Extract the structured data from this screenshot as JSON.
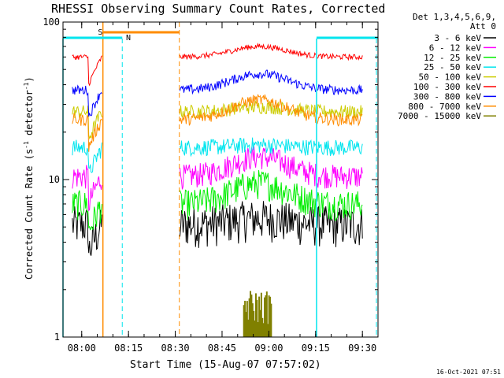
{
  "chart_data": {
    "type": "line",
    "title": "RHESSI Observing Summary Count Rates, Corrected",
    "xlabel": "Start Time (15-Aug-07 07:57:02)",
    "ylabel_main": "Corrected Count Rate (s",
    "ylabel_sup1": "-1",
    "ylabel_mid": " detector",
    "ylabel_sup2": "-1",
    "ylabel_end": ")",
    "yscale": "log",
    "ylim": [
      1,
      100
    ],
    "xlim_min": [
      -3.0,
      98.0
    ],
    "ytick_labels": [
      "1",
      "10",
      "100"
    ],
    "xticks": [
      {
        "label": "08:00",
        "min": 3
      },
      {
        "label": "08:15",
        "min": 18
      },
      {
        "label": "08:30",
        "min": 33
      },
      {
        "label": "08:45",
        "min": 48
      },
      {
        "label": "09:00",
        "min": 63
      },
      {
        "label": "09:15",
        "min": 78
      },
      {
        "label": "09:30",
        "min": 93
      }
    ],
    "legend_header": [
      "Det 1,3,4,5,6,9,",
      "Att 0"
    ],
    "legend_placement": "right",
    "data_gaps": [
      [
        9.5,
        34.5
      ],
      [
        78.0,
        78.5
      ]
    ],
    "series": [
      {
        "name": "3 - 6 keV",
        "color": "#000000",
        "base": 5.2,
        "peak": 0.5,
        "noise": 0.3
      },
      {
        "name": "6 - 12 keV",
        "color": "#ff00ff",
        "base": 10.5,
        "peak": 3.5,
        "noise": 0.18
      },
      {
        "name": "12 - 25 keV",
        "color": "#00ee00",
        "base": 7.0,
        "peak": 2.5,
        "noise": 0.22
      },
      {
        "name": "25 - 50 keV",
        "color": "#00e5ee",
        "base": 16.0,
        "peak": 0.6,
        "noise": 0.12
      },
      {
        "name": "50 - 100 keV",
        "color": "#cccc00",
        "base": 27.0,
        "peak": 2.0,
        "noise": 0.1
      },
      {
        "name": "100 - 300 keV",
        "color": "#ff0000",
        "base": 60.0,
        "peak": 10.0,
        "noise": 0.04
      },
      {
        "name": "300 - 800 keV",
        "color": "#0000ff",
        "base": 37.0,
        "peak": 10.0,
        "noise": 0.07
      },
      {
        "name": "800 - 7000 keV",
        "color": "#ff8c00",
        "base": 24.0,
        "peak": 8.0,
        "noise": 0.09
      },
      {
        "name": "7000 - 15000 keV",
        "color": "#808000",
        "base": 0,
        "peak": 0,
        "noise": 0
      }
    ],
    "markers": [
      {
        "label": "S",
        "color": "#ff8c00"
      },
      {
        "label": "N",
        "color": "#00e5ee"
      }
    ],
    "footer_date": "16-Oct-2021 07:51"
  }
}
